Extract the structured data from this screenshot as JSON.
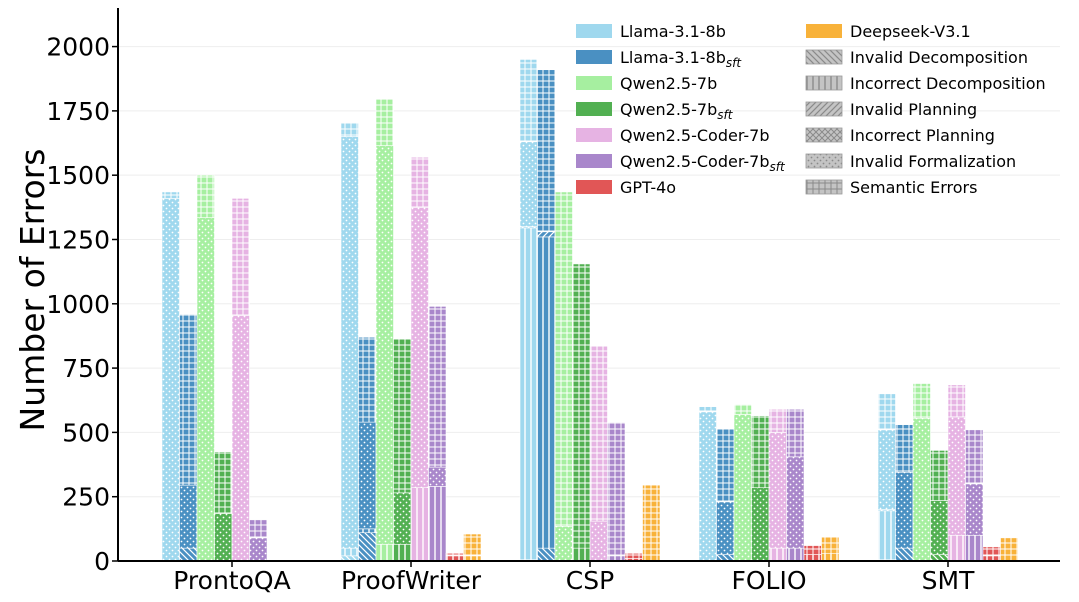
{
  "chart_data": {
    "type": "bar",
    "stacked": true,
    "ylabel": "Number of Errors",
    "xlabel": "",
    "ylim": [
      0,
      2150
    ],
    "yticks": [
      0,
      250,
      500,
      750,
      1000,
      1250,
      1500,
      1750,
      2000
    ],
    "ytick_labels": [
      "0",
      "250",
      "500",
      "750",
      "1000",
      "1250",
      "1500",
      "1750",
      "2000"
    ],
    "grid": "horizontal",
    "legend_position": "top-right",
    "categories": [
      "ProntoQA",
      "ProofWriter",
      "CSP",
      "FOLIO",
      "SMT"
    ],
    "error_types": [
      {
        "name": "Invalid Decomposition",
        "pattern": "backslash"
      },
      {
        "name": "Incorrect Decomposition",
        "pattern": "vertical"
      },
      {
        "name": "Invalid Planning",
        "pattern": "slash"
      },
      {
        "name": "Incorrect Planning",
        "pattern": "crosshatch"
      },
      {
        "name": "Invalid Formalization",
        "pattern": "dots"
      },
      {
        "name": "Semantic Errors",
        "pattern": "grid"
      }
    ],
    "series": [
      {
        "name": "Llama-3.1-8b",
        "base": "Llama-3.1-8b",
        "sub": "",
        "color": "#9fd8ee",
        "values": [
          [
            0,
            0,
            0,
            0,
            1410,
            25
          ],
          [
            20,
            30,
            0,
            0,
            1600,
            55
          ],
          [
            5,
            1290,
            5,
            0,
            330,
            320
          ],
          [
            0,
            0,
            0,
            0,
            580,
            20
          ],
          [
            5,
            190,
            5,
            0,
            310,
            140
          ]
        ]
      },
      {
        "name": "Llama-3.1-8b_sft",
        "base": "Llama-3.1-8b",
        "sub": "sft",
        "color": "#4a90c2",
        "values": [
          [
            50,
            0,
            0,
            0,
            245,
            665
          ],
          [
            110,
            15,
            0,
            0,
            415,
            330
          ],
          [
            50,
            1210,
            20,
            0,
            0,
            630
          ],
          [
            25,
            0,
            0,
            0,
            205,
            285
          ],
          [
            50,
            0,
            0,
            0,
            295,
            185
          ]
        ]
      },
      {
        "name": "Qwen2.5-7b",
        "base": "Qwen2.5-7b",
        "sub": "",
        "color": "#a6efa0",
        "values": [
          [
            0,
            0,
            0,
            0,
            1335,
            165
          ],
          [
            0,
            65,
            0,
            0,
            1550,
            180
          ],
          [
            0,
            0,
            0,
            0,
            135,
            1300
          ],
          [
            0,
            0,
            0,
            0,
            570,
            40
          ],
          [
            0,
            0,
            0,
            0,
            555,
            135
          ]
        ]
      },
      {
        "name": "Qwen2.5-7b_sft",
        "base": "Qwen2.5-7b",
        "sub": "sft",
        "color": "#52b052",
        "values": [
          [
            0,
            0,
            0,
            0,
            185,
            240
          ],
          [
            0,
            65,
            0,
            0,
            200,
            600
          ],
          [
            0,
            50,
            0,
            0,
            0,
            1105
          ],
          [
            0,
            0,
            0,
            0,
            285,
            280
          ],
          [
            25,
            0,
            0,
            0,
            210,
            195
          ]
        ]
      },
      {
        "name": "Qwen2.5-Coder-7b",
        "base": "Qwen2.5-Coder-7b",
        "sub": "",
        "color": "#e6b3e3",
        "values": [
          [
            0,
            0,
            0,
            0,
            955,
            455
          ],
          [
            0,
            285,
            0,
            0,
            1090,
            195
          ],
          [
            0,
            0,
            0,
            0,
            155,
            680
          ],
          [
            0,
            50,
            0,
            0,
            450,
            90
          ],
          [
            0,
            100,
            0,
            0,
            460,
            125
          ]
        ]
      },
      {
        "name": "Qwen2.5-Coder-7b_sft",
        "base": "Qwen2.5-Coder-7b",
        "sub": "sft",
        "color": "#a987cb",
        "values": [
          [
            0,
            0,
            0,
            0,
            90,
            70
          ],
          [
            0,
            290,
            0,
            0,
            75,
            625
          ],
          [
            0,
            20,
            0,
            0,
            0,
            520
          ],
          [
            0,
            50,
            0,
            0,
            355,
            185
          ],
          [
            0,
            100,
            0,
            0,
            200,
            210
          ]
        ]
      },
      {
        "name": "GPT-4o",
        "base": "GPT-4o",
        "sub": "",
        "color": "#e15656",
        "values": [
          [
            0,
            0,
            0,
            0,
            0,
            0
          ],
          [
            0,
            20,
            0,
            0,
            0,
            10
          ],
          [
            0,
            10,
            0,
            0,
            0,
            20
          ],
          [
            0,
            25,
            0,
            0,
            0,
            35
          ],
          [
            0,
            20,
            0,
            0,
            0,
            35
          ]
        ]
      },
      {
        "name": "Deepseek-V3.1",
        "base": "Deepseek-V3.1",
        "sub": "",
        "color": "#f8b23a",
        "values": [
          [
            0,
            0,
            0,
            0,
            0,
            0
          ],
          [
            0,
            20,
            0,
            0,
            0,
            85
          ],
          [
            0,
            0,
            0,
            0,
            0,
            295
          ],
          [
            0,
            30,
            0,
            0,
            0,
            65
          ],
          [
            0,
            0,
            0,
            0,
            0,
            90
          ]
        ]
      }
    ]
  }
}
